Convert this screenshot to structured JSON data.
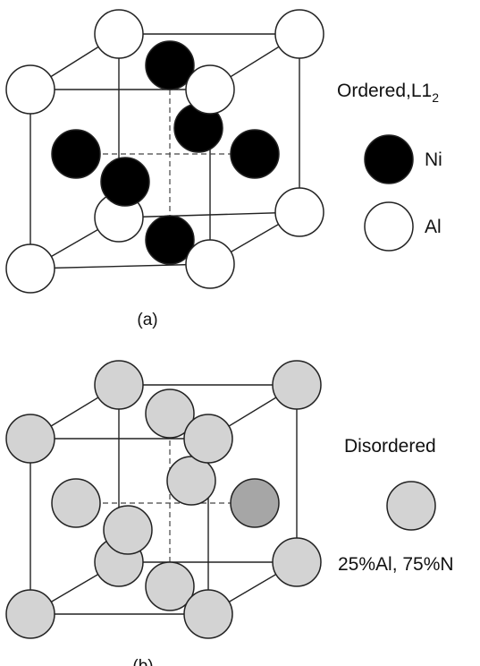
{
  "panel_a": {
    "title_main": "Ordered,L1",
    "title_sub": "2",
    "caption": "(a)",
    "legend": [
      {
        "label": "Ni",
        "color": "#000000"
      },
      {
        "label": "Al",
        "color": "#ffffff"
      }
    ]
  },
  "panel_b": {
    "title": "Disordered",
    "composition": "25%Al, 75%N",
    "caption": "(b)",
    "atom_color": "#d3d3d3",
    "highlight_color": "#a6a6a6"
  },
  "colors": {
    "line": "#222222",
    "ni": "#000000",
    "al": "#ffffff"
  }
}
